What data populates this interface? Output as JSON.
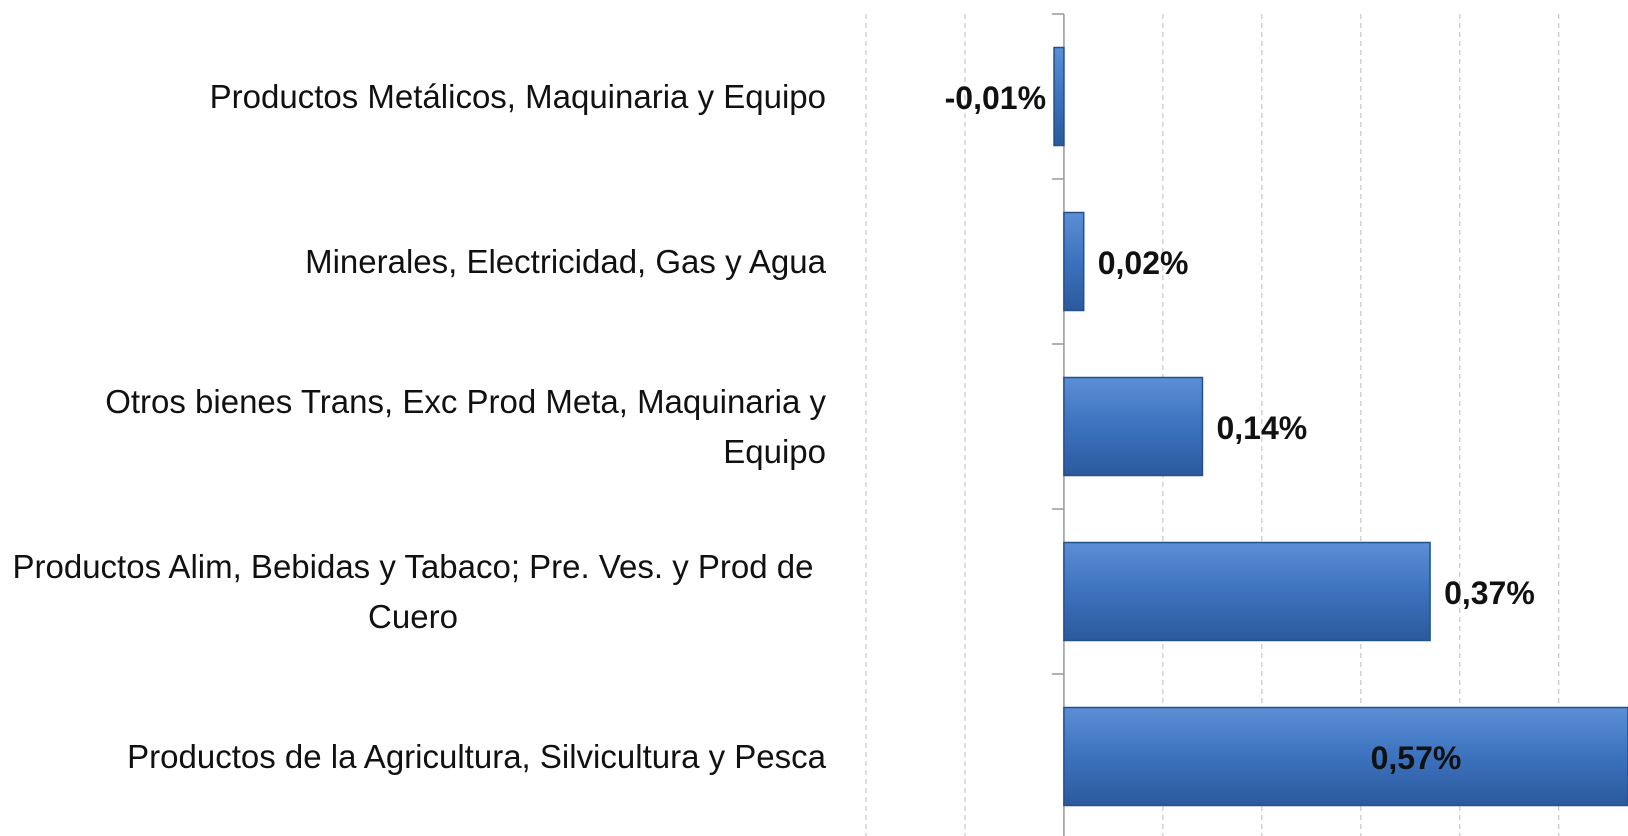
{
  "chart_data": {
    "type": "bar",
    "orientation": "horizontal",
    "categories": [
      "Productos Metálicos, Maquinaria y Equipo",
      "Minerales, Electricidad, Gas y Agua",
      "Otros bienes Trans, Exc Prod Meta, Maquinaria y Equipo",
      "Productos  Alim, Bebidas y Tabaco; Pre. Ves. y Prod de Cuero",
      "Productos de la Agricultura, Silvicultura y Pesca"
    ],
    "values": [
      -0.01,
      0.02,
      0.14,
      0.37,
      0.57
    ],
    "value_labels": [
      "-0,01%",
      "0,02%",
      "0,14%",
      "0,37%",
      "0,57%"
    ],
    "color": "#3c72be",
    "xlim": [
      -0.2,
      0.57
    ],
    "xticks": [
      -0.2,
      -0.1,
      0,
      0.1,
      0.2,
      0.3,
      0.4,
      0.5
    ],
    "grid": true
  }
}
